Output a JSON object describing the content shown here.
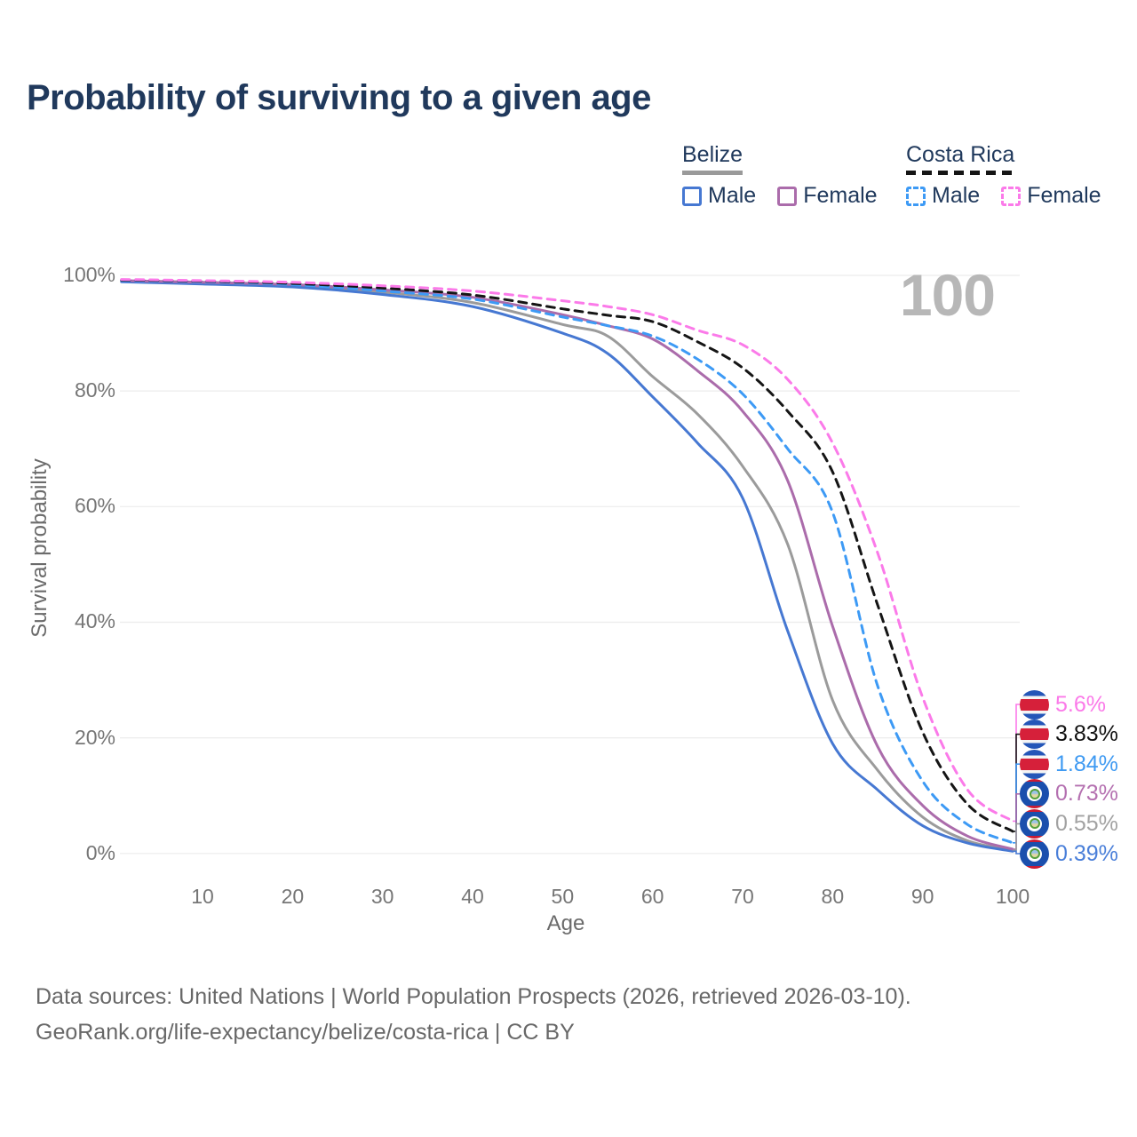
{
  "legend": {
    "groups": [
      {
        "name": "Belize",
        "underline": {
          "style": "solid",
          "color": "#9a9a9a"
        },
        "items": [
          {
            "label": "Male",
            "swatch_style": "solid",
            "swatch_color": "#4678d2"
          },
          {
            "label": "Female",
            "swatch_style": "solid",
            "swatch_color": "#ab6cab"
          }
        ]
      },
      {
        "name": "Costa Rica",
        "underline": {
          "style": "dashed",
          "color": "#151515"
        },
        "items": [
          {
            "label": "Male",
            "swatch_style": "dashed",
            "swatch_color": "#3d9af5"
          },
          {
            "label": "Female",
            "swatch_style": "dashed",
            "swatch_color": "#fb7ae9"
          }
        ]
      }
    ]
  },
  "footer": {
    "line1": "Data sources: United Nations | World Population Prospects (2026, retrieved 2026-03-10).",
    "line2": "GeoRank.org/life-expectancy/belize/costa-rica | CC BY"
  },
  "chart_data": {
    "type": "line",
    "title": "Probability of surviving to a given age",
    "xlabel": "Age",
    "ylabel": "Survival probability",
    "xlim": [
      0,
      100
    ],
    "ylim": [
      0,
      100
    ],
    "grid": "horizontal",
    "hovered_age_label": "100",
    "y_ticks": [
      {
        "value": 100,
        "label": "100%"
      },
      {
        "value": 80,
        "label": "80%"
      },
      {
        "value": 60,
        "label": "60%"
      },
      {
        "value": 40,
        "label": "40%"
      },
      {
        "value": 20,
        "label": "20%"
      },
      {
        "value": 0,
        "label": "0%"
      }
    ],
    "x_ticks": [
      {
        "value": 10,
        "label": "10"
      },
      {
        "value": 20,
        "label": "20"
      },
      {
        "value": 30,
        "label": "30"
      },
      {
        "value": 40,
        "label": "40"
      },
      {
        "value": 50,
        "label": "50"
      },
      {
        "value": 60,
        "label": "60"
      },
      {
        "value": 70,
        "label": "70"
      },
      {
        "value": 80,
        "label": "80"
      },
      {
        "value": 90,
        "label": "90"
      },
      {
        "value": 100,
        "label": "100"
      }
    ],
    "ages": [
      1,
      10,
      20,
      30,
      40,
      50,
      55,
      60,
      65,
      70,
      75,
      80,
      85,
      90,
      95,
      100
    ],
    "series": [
      {
        "name": "Belize All",
        "country": "Belize",
        "group": "All",
        "style": "solid",
        "color": "#9b9b9b",
        "values": [
          99.0,
          98.7,
          98.2,
          97.1,
          95.3,
          91.5,
          89.5,
          82.5,
          76.0,
          67.0,
          53.5,
          26.5,
          14.4,
          6.3,
          2.2,
          0.55
        ]
      },
      {
        "name": "Belize Male",
        "country": "Belize",
        "group": "Male",
        "style": "solid",
        "color": "#4678d2",
        "values": [
          98.9,
          98.5,
          98.0,
          96.7,
          94.6,
          90.0,
          86.5,
          79.0,
          71.0,
          61.5,
          38.5,
          19.0,
          11.0,
          4.8,
          1.8,
          0.39
        ]
      },
      {
        "name": "Belize Female",
        "country": "Belize",
        "group": "Female",
        "style": "solid",
        "color": "#ab6cab",
        "values": [
          99.1,
          98.8,
          98.4,
          97.5,
          96.2,
          93.2,
          91.3,
          89.0,
          83.5,
          76.5,
          64.5,
          39.3,
          18.5,
          8.3,
          3.0,
          0.73
        ]
      },
      {
        "name": "Costa Rica Male",
        "country": "Costa Rica",
        "group": "Male",
        "style": "dashed",
        "color": "#3d9af5",
        "values": [
          99.1,
          98.9,
          98.4,
          97.3,
          95.9,
          92.8,
          91.3,
          89.5,
          85.5,
          79.5,
          70.0,
          59.0,
          29.0,
          12.5,
          5.0,
          1.84
        ]
      },
      {
        "name": "Costa Rica All",
        "country": "Costa Rica",
        "group": "All",
        "style": "dashed",
        "color": "#151515",
        "values": [
          99.2,
          99.0,
          98.6,
          97.8,
          96.6,
          94.2,
          93.1,
          92.0,
          88.5,
          84.0,
          76.5,
          66.0,
          43.0,
          21.0,
          8.5,
          3.83
        ]
      },
      {
        "name": "Costa Rica Female",
        "country": "Costa Rica",
        "group": "Female",
        "style": "dashed",
        "color": "#fb7ae9",
        "values": [
          99.3,
          99.1,
          98.8,
          98.2,
          97.3,
          95.6,
          94.6,
          93.2,
          90.5,
          88.0,
          82.0,
          71.0,
          52.0,
          27.0,
          11.0,
          5.6
        ]
      }
    ],
    "end_labels": [
      {
        "text": "5.6%",
        "color": "#fb7ae9",
        "flag": "costa-rica",
        "series": "Costa Rica Female"
      },
      {
        "text": "3.83%",
        "color": "#111111",
        "flag": "costa-rica",
        "series": "Costa Rica All"
      },
      {
        "text": "1.84%",
        "color": "#3f9af2",
        "flag": "costa-rica",
        "series": "Costa Rica Male"
      },
      {
        "text": "0.73%",
        "color": "#b470b0",
        "flag": "belize",
        "series": "Belize Female"
      },
      {
        "text": "0.55%",
        "color": "#a2a2a2",
        "flag": "belize",
        "series": "Belize All"
      },
      {
        "text": "0.39%",
        "color": "#4a7fd9",
        "flag": "belize",
        "series": "Belize Male"
      }
    ]
  }
}
